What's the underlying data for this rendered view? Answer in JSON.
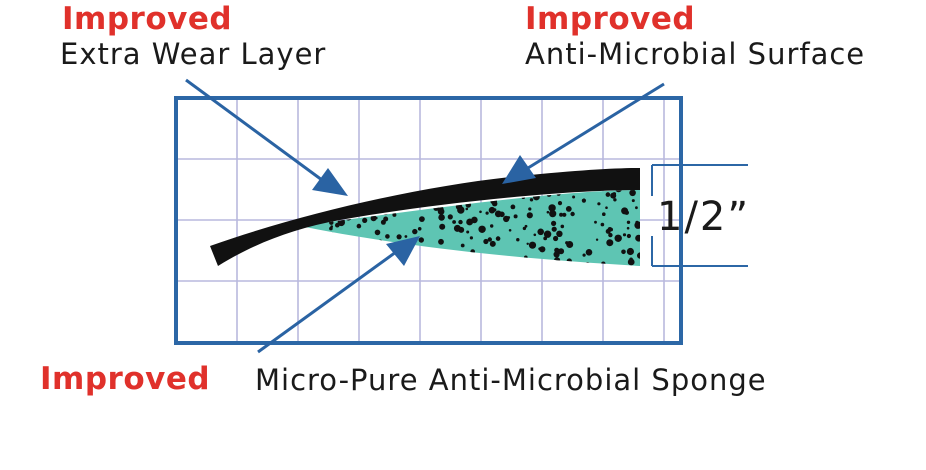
{
  "callouts": {
    "wear_layer": {
      "tag": "Improved",
      "text": "Extra Wear Layer"
    },
    "surface": {
      "tag": "Improved",
      "text": "Anti-Microbial Surface"
    },
    "sponge": {
      "tag": "Improved",
      "text": "Micro-Pure Anti-Microbial Sponge"
    }
  },
  "dimension": {
    "label": "1/2”"
  },
  "colors": {
    "tag_red": "#e0312b",
    "grid_blue": "#2c67a6",
    "grid_light": "#b9b9dd",
    "sponge_teal": "#5ec5b3",
    "layer_black": "#111111",
    "arrow_blue": "#2a63a3"
  }
}
